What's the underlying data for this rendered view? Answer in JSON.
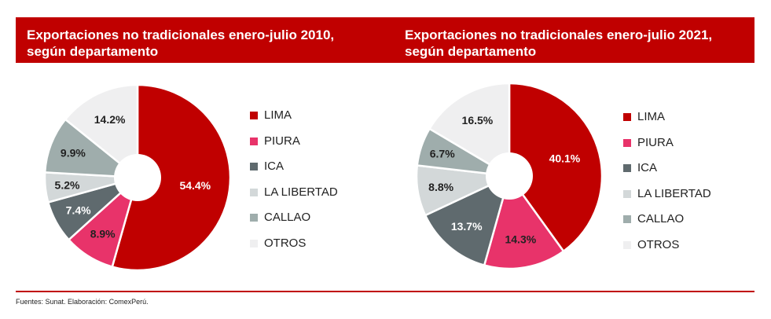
{
  "source": "Fuentes: Sunat. Elaboración: ComexPerú.",
  "colors": {
    "banner": "#c00000",
    "LIMA": "#c00000",
    "PIURA": "#e8336a",
    "ICA": "#5f6a6e",
    "LA LIBERTAD": "#d3d8d9",
    "CALLAO": "#9fadac",
    "OTROS": "#efeff0"
  },
  "chart_data": [
    {
      "type": "pie",
      "title": "Exportaciones no tradicionales enero-julio 2010, según departamento",
      "categories": [
        "LIMA",
        "PIURA",
        "ICA",
        "LA LIBERTAD",
        "CALLAO",
        "OTROS"
      ],
      "values": [
        54.4,
        8.9,
        7.4,
        5.2,
        9.9,
        14.2
      ],
      "labels": [
        "54.4%",
        "8.9%",
        "7.4%",
        "5.2%",
        "9.9%",
        "14.2%"
      ],
      "legend": [
        "LIMA",
        "PIURA",
        "ICA",
        "LA LIBERTAD",
        "CALLAO",
        "OTROS"
      ],
      "legend_position": "right",
      "donut": true
    },
    {
      "type": "pie",
      "title": "Exportaciones no tradicionales enero-julio 2021, según departamento",
      "categories": [
        "LIMA",
        "PIURA",
        "ICA",
        "LA LIBERTAD",
        "CALLAO",
        "OTROS"
      ],
      "values": [
        40.1,
        14.3,
        13.7,
        8.8,
        6.7,
        16.5
      ],
      "labels": [
        "40.1%",
        "14.3%",
        "13.7%",
        "8.8%",
        "6.7%",
        "16.5%"
      ],
      "legend": [
        "LIMA",
        "PIURA",
        "ICA",
        "LA LIBERTAD",
        "CALLAO",
        "OTROS"
      ],
      "legend_position": "right",
      "donut": true
    }
  ]
}
